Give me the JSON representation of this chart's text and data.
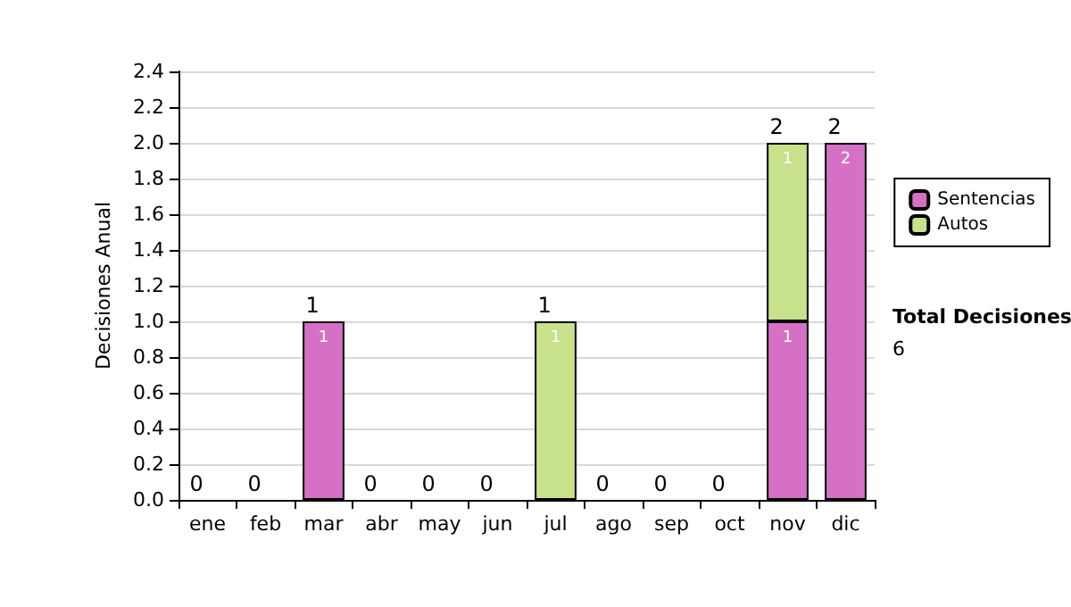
{
  "chart_data": {
    "type": "bar",
    "stacked": true,
    "ylabel": "Decisiones Anual",
    "categories": [
      "ene",
      "feb",
      "mar",
      "abr",
      "may",
      "jun",
      "jul",
      "ago",
      "sep",
      "oct",
      "nov",
      "dic"
    ],
    "series": [
      {
        "name": "Sentencias",
        "color": "#d670c4",
        "values": [
          0,
          0,
          1,
          0,
          0,
          0,
          0,
          0,
          0,
          0,
          1,
          2
        ],
        "value_labels": [
          null,
          null,
          "1",
          null,
          null,
          null,
          null,
          null,
          null,
          null,
          "1",
          "2"
        ]
      },
      {
        "name": "Autos",
        "color": "#c8e28c",
        "values": [
          0,
          0,
          0,
          0,
          0,
          0,
          1,
          0,
          0,
          0,
          1,
          0
        ],
        "value_labels": [
          null,
          null,
          null,
          null,
          null,
          null,
          "1",
          null,
          null,
          null,
          "1",
          null
        ]
      }
    ],
    "totals": [
      "0",
      "0",
      "1",
      "0",
      "0",
      "0",
      "1",
      "0",
      "0",
      "0",
      "2",
      "2"
    ],
    "ylim": [
      0,
      2.4
    ],
    "yticks": [
      {
        "value": 0,
        "label": "0.0"
      },
      {
        "value": 0.2,
        "label": "0.2"
      },
      {
        "value": 0.4,
        "label": "0.4"
      },
      {
        "value": 0.6,
        "label": "0.6"
      },
      {
        "value": 0.8,
        "label": "0.8"
      },
      {
        "value": 1,
        "label": "1.0"
      },
      {
        "value": 1.2,
        "label": "1.2"
      },
      {
        "value": 1.4,
        "label": "1.4"
      },
      {
        "value": 1.6,
        "label": "1.6"
      },
      {
        "value": 1.8,
        "label": "1.8"
      },
      {
        "value": 2,
        "label": "2.0"
      },
      {
        "value": 2.2,
        "label": "2.2"
      },
      {
        "value": 2.4,
        "label": "2.4"
      }
    ],
    "grid": "y",
    "legend": "right",
    "annotations": [
      "Total Decisiones",
      "6"
    ]
  }
}
